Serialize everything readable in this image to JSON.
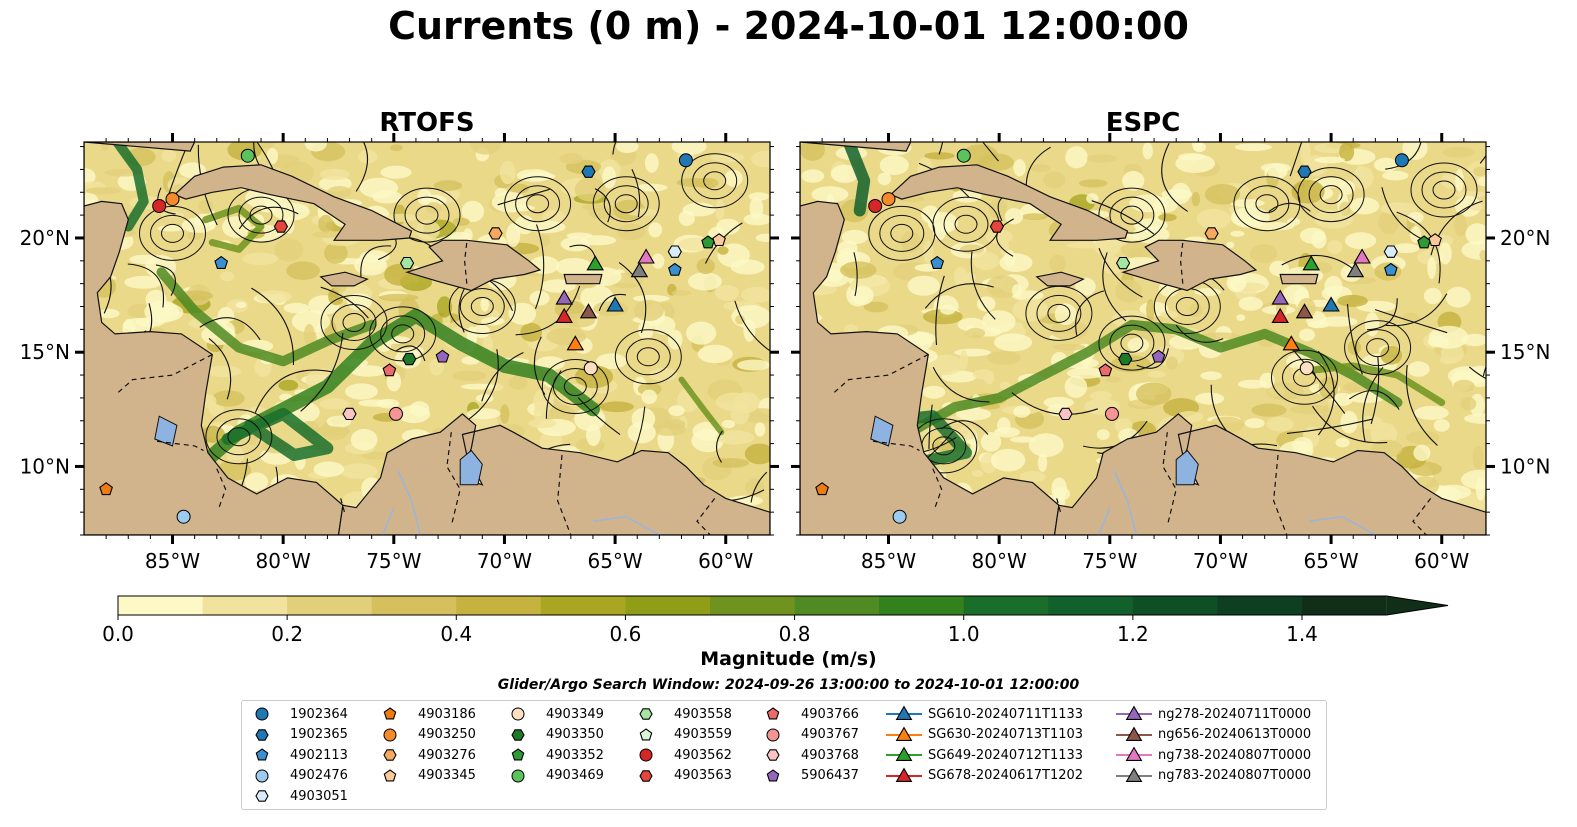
{
  "title": "Currents (0 m) - 2024-10-01 12:00:00",
  "panels": [
    {
      "title": "RTOFS"
    },
    {
      "title": "ESPC"
    }
  ],
  "lat_ticks": [
    "20°N",
    "15°N",
    "10°N"
  ],
  "lon_ticks": [
    "85°W",
    "80°W",
    "75°W",
    "70°W",
    "65°W",
    "60°W"
  ],
  "colorbar": {
    "label": "Magnitude (m/s)",
    "ticks": [
      "0.0",
      "0.2",
      "0.4",
      "0.6",
      "0.8",
      "1.0",
      "1.2",
      "1.4"
    ],
    "min": 0.0,
    "max": 1.5,
    "extend": "max",
    "colors": [
      "#fdf9c7",
      "#f1e39e",
      "#e2cf7a",
      "#d5c05d",
      "#c6b23f",
      "#aaa622",
      "#8f9e16",
      "#6f931e",
      "#4f8a22",
      "#33801f",
      "#1a6e2a",
      "#12602b",
      "#0f4f26",
      "#0d3f20",
      "#102e18"
    ]
  },
  "search_window": "Glider/Argo Search Window: 2024-09-26 13:00:00 to 2024-10-01 12:00:00",
  "colors": {
    "land": "#d2b48c",
    "lake": "#8fb3e0",
    "ocean_low": "#f7eda8"
  },
  "legend": {
    "columns": [
      [
        {
          "label": "1902364",
          "marker": "circle",
          "color": "#1f77b4"
        },
        {
          "label": "1902365",
          "marker": "hexagon",
          "color": "#1f77b4"
        },
        {
          "label": "4902113",
          "marker": "pentagon",
          "color": "#3a8fd0"
        },
        {
          "label": "4902476",
          "marker": "circle",
          "color": "#9ccbf0"
        },
        {
          "label": "4903051",
          "marker": "hexagon",
          "color": "#d8ecfb"
        }
      ],
      [
        {
          "label": "4903186",
          "marker": "pentagon",
          "color": "#ee7b0f"
        },
        {
          "label": "4903250",
          "marker": "circle",
          "color": "#f58a2a"
        },
        {
          "label": "4903276",
          "marker": "hexagon",
          "color": "#f8a860"
        },
        {
          "label": "4903345",
          "marker": "pentagon",
          "color": "#fcc99a"
        }
      ],
      [
        {
          "label": "4903349",
          "marker": "circle",
          "color": "#fde0c2"
        },
        {
          "label": "4903350",
          "marker": "hexagon",
          "color": "#1e7a26"
        },
        {
          "label": "4903352",
          "marker": "pentagon",
          "color": "#2d9a35"
        },
        {
          "label": "4903469",
          "marker": "circle",
          "color": "#5cc35c"
        }
      ],
      [
        {
          "label": "4903558",
          "marker": "hexagon",
          "color": "#a2e6a2"
        },
        {
          "label": "4903559",
          "marker": "pentagon",
          "color": "#d9f7d6"
        },
        {
          "label": "4903562",
          "marker": "circle",
          "color": "#d62728"
        },
        {
          "label": "4903563",
          "marker": "hexagon",
          "color": "#e4453d"
        }
      ],
      [
        {
          "label": "4903766",
          "marker": "pentagon",
          "color": "#ec6a6a"
        },
        {
          "label": "4903767",
          "marker": "circle",
          "color": "#f49494"
        },
        {
          "label": "4903768",
          "marker": "hexagon",
          "color": "#fbc4c4"
        },
        {
          "label": "5906437",
          "marker": "pentagon",
          "color": "#9467bd"
        }
      ],
      [
        {
          "label": "SG610-20240711T1133",
          "marker": "triangle",
          "color": "#1f77b4"
        },
        {
          "label": "SG630-20240713T1103",
          "marker": "triangle",
          "color": "#ff7f0e"
        },
        {
          "label": "SG649-20240712T1133",
          "marker": "triangle",
          "color": "#2ca02c"
        },
        {
          "label": "SG678-20240617T1202",
          "marker": "triangle",
          "color": "#d62728"
        }
      ],
      [
        {
          "label": "ng278-20240711T0000",
          "marker": "triangle",
          "color": "#9467bd"
        },
        {
          "label": "ng656-20240613T0000",
          "marker": "triangle",
          "color": "#8c564b"
        },
        {
          "label": "ng738-20240807T0000",
          "marker": "triangle",
          "color": "#e377c2"
        },
        {
          "label": "ng783-20240807T0000",
          "marker": "triangle",
          "color": "#7f7f7f"
        }
      ]
    ]
  },
  "map_extent": {
    "lon_min": -89,
    "lon_max": -58,
    "lat_min": 7,
    "lat_max": 24.2
  },
  "observations": [
    {
      "id": "1902364",
      "lon": -61.8,
      "lat": 23.4
    },
    {
      "id": "1902365",
      "lon": -66.2,
      "lat": 22.9
    },
    {
      "id": "4903469",
      "lon": -81.6,
      "lat": 23.6
    },
    {
      "id": "4903562",
      "lon": -85.6,
      "lat": 21.4
    },
    {
      "id": "4903250",
      "lon": -85.0,
      "lat": 21.7
    },
    {
      "id": "4903563",
      "lon": -80.1,
      "lat": 20.5
    },
    {
      "id": "4902113",
      "lon": -82.8,
      "lat": 18.9
    },
    {
      "id": "4903558",
      "lon": -74.4,
      "lat": 18.9
    },
    {
      "id": "4903276",
      "lon": -70.4,
      "lat": 20.2
    },
    {
      "id": "4903352",
      "lon": -60.8,
      "lat": 19.8
    },
    {
      "id": "4903345",
      "lon": -60.3,
      "lat": 19.9
    },
    {
      "id": "4903051",
      "lon": -62.3,
      "lat": 19.4
    },
    {
      "id": "4902113",
      "lon": -62.3,
      "lat": 18.6
    },
    {
      "id": "4903350",
      "lon": -74.3,
      "lat": 14.7
    },
    {
      "id": "5906437",
      "lon": -72.8,
      "lat": 14.8
    },
    {
      "id": "4903766",
      "lon": -75.2,
      "lat": 14.2
    },
    {
      "id": "4903349",
      "lon": -66.1,
      "lat": 14.3
    },
    {
      "id": "4903768",
      "lon": -77.0,
      "lat": 12.3
    },
    {
      "id": "4903767",
      "lon": -74.9,
      "lat": 12.3
    },
    {
      "id": "4903186",
      "lon": -88.0,
      "lat": 9.0
    },
    {
      "id": "4902476",
      "lon": -84.5,
      "lat": 7.8
    }
  ],
  "gliders": [
    {
      "id": "SG649-20240712T1133",
      "lon": -65.9,
      "lat": 18.9
    },
    {
      "id": "ng738-20240807T0000",
      "lon": -63.6,
      "lat": 19.2
    },
    {
      "id": "ng783-20240807T0000",
      "lon": -63.9,
      "lat": 18.6
    },
    {
      "id": "ng278-20240711T0000",
      "lon": -67.3,
      "lat": 17.4
    },
    {
      "id": "SG610-20240711T1133",
      "lon": -65.0,
      "lat": 17.1
    },
    {
      "id": "ng656-20240613T0000",
      "lon": -66.2,
      "lat": 16.8
    },
    {
      "id": "SG678-20240617T1202",
      "lon": -67.3,
      "lat": 16.6
    },
    {
      "id": "SG630-20240713T1103",
      "lon": -66.8,
      "lat": 15.4
    }
  ]
}
